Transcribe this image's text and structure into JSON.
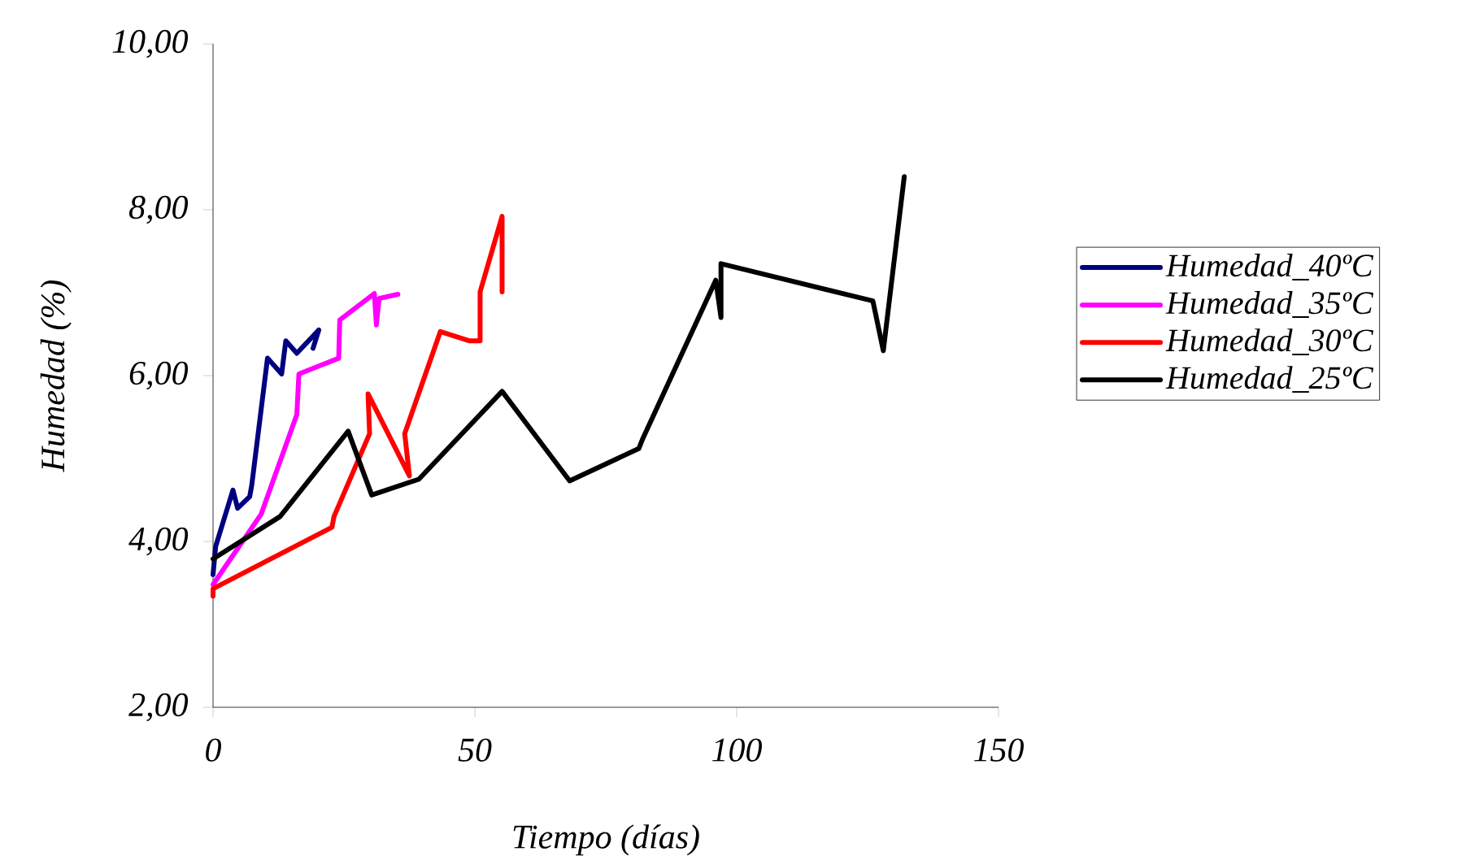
{
  "chart_data": {
    "type": "line",
    "xlabel": "Tiempo (días)",
    "ylabel": "Humedad (%)",
    "xlim": [
      0,
      150
    ],
    "xticks": [
      0,
      50,
      100,
      150
    ],
    "ylim": [
      2,
      10
    ],
    "yticks": [
      {
        "value": 2,
        "label": "2,00"
      },
      {
        "value": 4,
        "label": "4,00"
      },
      {
        "value": 6,
        "label": "6,00"
      },
      {
        "value": 8,
        "label": "8,00"
      },
      {
        "value": 10,
        "label": "10,00"
      }
    ],
    "legend": "right",
    "marker": "none",
    "line_style": "solid",
    "series": [
      {
        "name": "Humedad_40ºC",
        "color": "#000080",
        "x": [
          0,
          0.5,
          3.8,
          4.7,
          7,
          7.4,
          10.4,
          13.1,
          13.9,
          16,
          20.2,
          19.1
        ],
        "values": [
          3.6,
          3.94,
          4.62,
          4.4,
          4.54,
          4.68,
          6.21,
          6.02,
          6.42,
          6.27,
          6.55,
          6.33
        ]
      },
      {
        "name": "Humedad_35ºC",
        "color": "#ff00ff",
        "x": [
          0,
          9.2,
          16,
          16.4,
          20.4,
          24,
          24.2,
          30.8,
          31.2,
          31.7,
          35.3
        ],
        "values": [
          3.48,
          4.33,
          5.53,
          6.02,
          6.12,
          6.21,
          6.67,
          6.99,
          6.61,
          6.93,
          6.98
        ]
      },
      {
        "name": "Humedad_30ºC",
        "color": "#ff0000",
        "x": [
          0,
          0,
          22.7,
          23.1,
          29.9,
          29.6,
          37.5,
          36.6,
          43.4,
          48.9,
          51,
          51,
          55.2,
          55.2
        ],
        "values": [
          3.34,
          3.43,
          4.17,
          4.3,
          5.3,
          5.78,
          4.79,
          5.3,
          6.53,
          6.42,
          6.42,
          7.01,
          7.92,
          7.01
        ]
      },
      {
        "name": "Humedad_25ºC",
        "color": "#000000",
        "x": [
          0,
          12.8,
          25.8,
          30.3,
          39.3,
          55.2,
          68.1,
          81.3,
          82,
          96,
          97,
          97,
          126,
          128,
          132
        ],
        "values": [
          3.79,
          4.3,
          5.33,
          4.56,
          4.75,
          5.81,
          4.73,
          5.12,
          5.23,
          7.15,
          6.7,
          7.35,
          6.9,
          6.3,
          8.4
        ]
      }
    ]
  }
}
